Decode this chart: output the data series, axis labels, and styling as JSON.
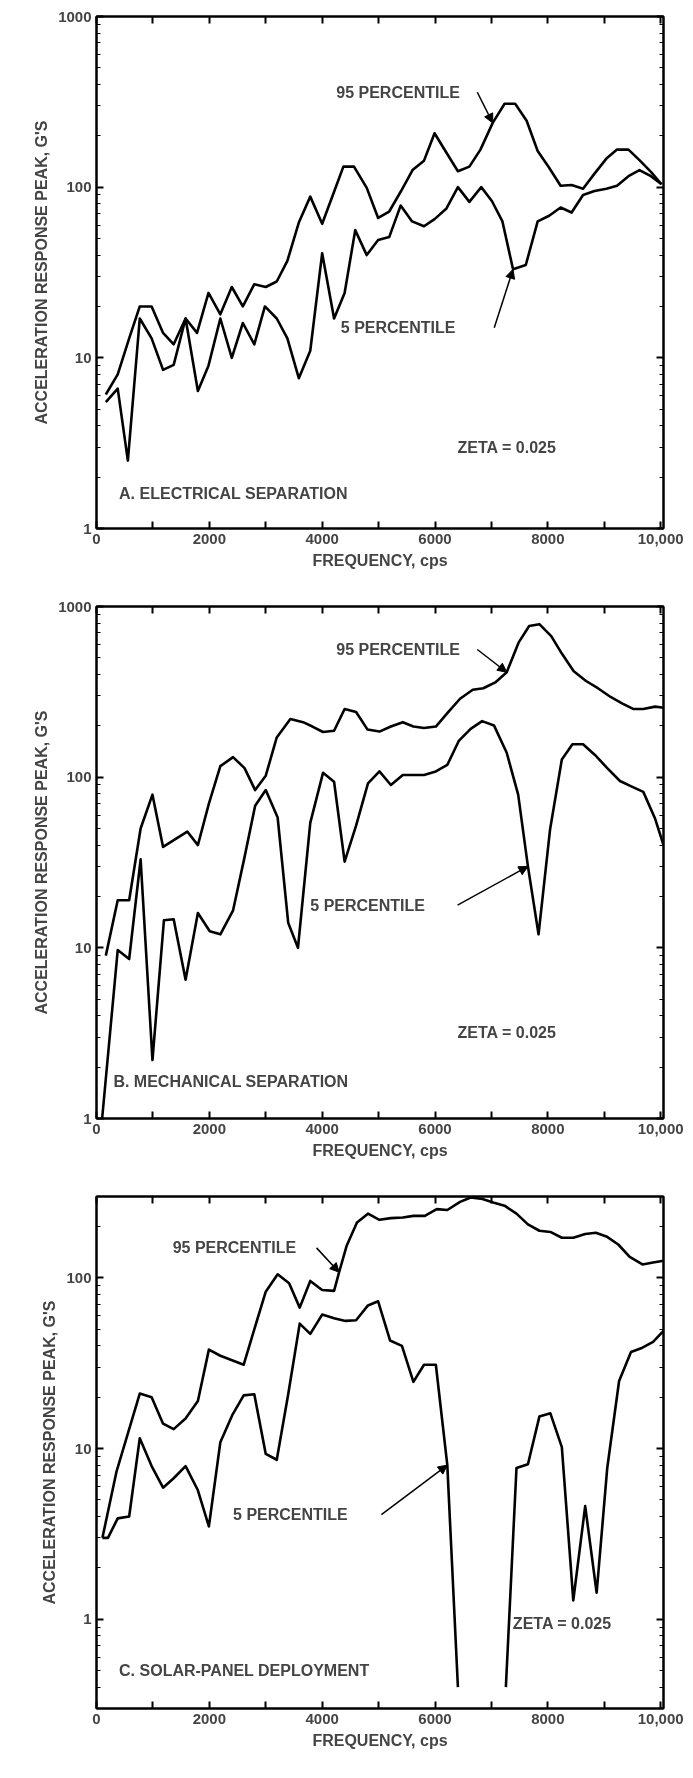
{
  "chart_data": [
    {
      "type": "line",
      "title": "A. ELECTRICAL SEPARATION",
      "xlabel": "FREQUENCY, cps",
      "ylabel": "ACCELERATION RESPONSE PEAK, G'S",
      "annotations": [
        "ZETA = 0.025"
      ],
      "log": "y",
      "xlim": [
        0,
        10050
      ],
      "ylim": [
        1,
        1000
      ],
      "xticks": [
        0,
        {
          "value": 1000,
          "label": null
        },
        2000,
        {
          "value": 3000,
          "label": null
        },
        4000,
        {
          "value": 5000,
          "label": null
        },
        6000,
        {
          "value": 7000,
          "label": null
        },
        8000,
        {
          "value": 9000,
          "label": null
        },
        {
          "value": 10000,
          "label": "10,000"
        }
      ],
      "yticks": [
        1,
        {
          "value": 2,
          "label": null
        },
        {
          "value": 3,
          "label": null
        },
        {
          "value": 4,
          "label": null
        },
        {
          "value": 5,
          "label": null
        },
        {
          "value": 6,
          "label": null
        },
        {
          "value": 7,
          "label": null
        },
        {
          "value": 8,
          "label": null
        },
        {
          "value": 9,
          "label": null
        },
        10,
        {
          "value": 20,
          "label": null
        },
        {
          "value": 30,
          "label": null
        },
        {
          "value": 40,
          "label": null
        },
        {
          "value": 50,
          "label": null
        },
        {
          "value": 60,
          "label": null
        },
        {
          "value": 70,
          "label": null
        },
        {
          "value": 80,
          "label": null
        },
        {
          "value": 90,
          "label": null
        },
        100,
        {
          "value": 200,
          "label": null
        },
        {
          "value": 300,
          "label": null
        },
        {
          "value": 400,
          "label": null
        },
        {
          "value": 500,
          "label": null
        },
        {
          "value": 600,
          "label": null
        },
        {
          "value": 700,
          "label": null
        },
        {
          "value": 800,
          "label": null
        },
        {
          "value": 900,
          "label": null
        },
        1000
      ],
      "series": [
        {
          "name": "95 PERCENTILE",
          "color": "#000000",
          "x": [
            165,
            376,
            579,
            767,
            977,
            1180,
            1368,
            1579,
            1782,
            1985,
            2195,
            2398,
            2594,
            2797,
            3000,
            3195,
            3383,
            3586,
            3789,
            4000,
            4211,
            4376,
            4564,
            4790,
            4992,
            5188,
            5391,
            5602,
            5805,
            5992,
            6203,
            6406,
            6609,
            6805,
            7023,
            7233,
            7421,
            7624,
            7820,
            8023,
            8226,
            8421,
            8624,
            8827,
            9038,
            9226,
            9429,
            9624,
            9827,
            10015
          ],
          "values": [
            6.1,
            8,
            13,
            20,
            20,
            14,
            12,
            17,
            14,
            24,
            18,
            26,
            20,
            27,
            26,
            28,
            37,
            62,
            88,
            61,
            94,
            132,
            132,
            99,
            66,
            72,
            94,
            126,
            143,
            207,
            159,
            124,
            132,
            166,
            238,
            308,
            308,
            245,
            163,
            130,
            102,
            103,
            98,
            120,
            147,
            166,
            166,
            144,
            123,
            104
          ]
        },
        {
          "name": "5 PERCENTILE",
          "color": "#000000",
          "x": [
            165,
            376,
            556,
            767,
            977,
            1180,
            1368,
            1579,
            1797,
            1985,
            2195,
            2398,
            2594,
            2797,
            2985,
            3195,
            3383,
            3586,
            3789,
            4000,
            4211,
            4398,
            4586,
            4790,
            4992,
            5188,
            5391,
            5594,
            5805,
            5992,
            6203,
            6406,
            6609,
            6820,
            7008,
            7195,
            7383,
            7609,
            7820,
            8023,
            8226,
            8421,
            8624,
            8827,
            9038,
            9226,
            9429,
            9624,
            9827,
            10015
          ],
          "values": [
            5.5,
            6.6,
            2.5,
            17,
            13,
            8.5,
            9.1,
            17,
            6.4,
            9,
            17,
            10,
            16,
            12,
            20,
            17,
            13,
            7.6,
            11,
            41,
            17,
            24,
            56,
            40,
            49,
            51,
            78,
            63,
            59,
            65,
            75,
            100,
            82,
            100,
            83,
            63,
            33,
            35,
            63,
            68,
            76,
            71,
            90,
            95,
            98,
            102,
            116,
            126,
            116,
            104
          ]
        }
      ]
    },
    {
      "type": "line",
      "title": "B. MECHANICAL SEPARATION",
      "xlabel": "FREQUENCY, cps",
      "ylabel": "ACCELERATION RESPONSE PEAK, G'S",
      "annotations": [
        "ZETA = 0.025"
      ],
      "log": "y",
      "xlim": [
        0,
        10050
      ],
      "ylim": [
        1,
        1000
      ],
      "xticks": [
        0,
        {
          "value": 1000,
          "label": null
        },
        2000,
        {
          "value": 3000,
          "label": null
        },
        4000,
        {
          "value": 5000,
          "label": null
        },
        6000,
        {
          "value": 7000,
          "label": null
        },
        8000,
        {
          "value": 9000,
          "label": null
        },
        {
          "value": 10000,
          "label": "10,000"
        }
      ],
      "yticks": [
        1,
        {
          "value": 2,
          "label": null
        },
        {
          "value": 3,
          "label": null
        },
        {
          "value": 4,
          "label": null
        },
        {
          "value": 5,
          "label": null
        },
        {
          "value": 6,
          "label": null
        },
        {
          "value": 7,
          "label": null
        },
        {
          "value": 8,
          "label": null
        },
        {
          "value": 9,
          "label": null
        },
        10,
        {
          "value": 20,
          "label": null
        },
        {
          "value": 30,
          "label": null
        },
        {
          "value": 40,
          "label": null
        },
        {
          "value": 50,
          "label": null
        },
        {
          "value": 60,
          "label": null
        },
        {
          "value": 70,
          "label": null
        },
        {
          "value": 80,
          "label": null
        },
        {
          "value": 90,
          "label": null
        },
        100,
        {
          "value": 200,
          "label": null
        },
        {
          "value": 300,
          "label": null
        },
        {
          "value": 400,
          "label": null
        },
        {
          "value": 500,
          "label": null
        },
        {
          "value": 600,
          "label": null
        },
        {
          "value": 700,
          "label": null
        },
        {
          "value": 800,
          "label": null
        },
        {
          "value": 900,
          "label": null
        },
        1000
      ],
      "series": [
        {
          "name": "95 PERCENTILE",
          "color": "#000000",
          "x": [
            165,
            376,
            579,
            782,
            992,
            1180,
            1609,
            1797,
            1992,
            2195,
            2421,
            2624,
            2812,
            3000,
            3195,
            3436,
            3662,
            3827,
            4015,
            4211,
            4398,
            4601,
            4805,
            5015,
            5218,
            5429,
            5617,
            5805,
            6015,
            6218,
            6444,
            6669,
            6857,
            7068,
            7271,
            7481,
            7669,
            7850,
            8060,
            8248,
            8459,
            8677,
            8887,
            9113,
            9323,
            9511,
            9692,
            9902,
            10050
          ],
          "values": [
            9,
            19,
            19,
            50,
            79,
            39,
            48,
            40,
            70,
            116,
            131,
            113,
            84,
            102,
            171,
            219,
            210,
            198,
            184,
            187,
            251,
            241,
            190,
            185,
            198,
            210,
            198,
            194,
            198,
            237,
            288,
            325,
            332,
            359,
            412,
            614,
            769,
            788,
            671,
            530,
            417,
            366,
            332,
            295,
            270,
            251,
            251,
            259,
            255
          ]
        },
        {
          "name": "5 PERCENTILE",
          "color": "#000000",
          "x": [
            100,
            376,
            579,
            782,
            992,
            1195,
            1368,
            1579,
            1797,
            2008,
            2195,
            2421,
            2624,
            2812,
            3000,
            3211,
            3398,
            3571,
            3789,
            4015,
            4211,
            4398,
            4601,
            4812,
            5015,
            5218,
            5429,
            5617,
            5805,
            6015,
            6218,
            6421,
            6632,
            6835,
            7045,
            7271,
            7474,
            7647,
            7835,
            8038,
            8248,
            8436,
            8624,
            8835,
            9053,
            9278,
            9489,
            9692,
            9902,
            10050
          ],
          "values": [
            1,
            9.7,
            8.6,
            33,
            2.2,
            14.5,
            14.7,
            6.5,
            16,
            12.5,
            12,
            16.6,
            34,
            68,
            84,
            58,
            14,
            10,
            54,
            106,
            94,
            32,
            52,
            92,
            108,
            90,
            103,
            103,
            103,
            108,
            118,
            163,
            192,
            213,
            201,
            139,
            79,
            30,
            12,
            49,
            127,
            156,
            156,
            135,
            113,
            95,
            88,
            82,
            57,
            40
          ]
        }
      ]
    },
    {
      "type": "line",
      "title": "C. SOLAR-PANEL DEPLOYMENT",
      "xlabel": "FREQUENCY, cps",
      "ylabel": "ACCELERATION RESPONSE PEAK, G'S",
      "annotations": [
        "ZETA = 0.025"
      ],
      "log": "y",
      "xlim": [
        0,
        10050
      ],
      "ylim": [
        0.3,
        300
      ],
      "xticks": [
        0,
        {
          "value": 1000,
          "label": null
        },
        2000,
        {
          "value": 3000,
          "label": null
        },
        4000,
        {
          "value": 5000,
          "label": null
        },
        6000,
        {
          "value": 7000,
          "label": null
        },
        8000,
        {
          "value": 9000,
          "label": null
        },
        {
          "value": 10000,
          "label": "10,000"
        }
      ],
      "yticks": [
        {
          "value": 0.4,
          "label": null
        },
        {
          "value": 0.5,
          "label": null
        },
        {
          "value": 0.6,
          "label": null
        },
        {
          "value": 0.7,
          "label": null
        },
        {
          "value": 0.8,
          "label": null
        },
        {
          "value": 0.9,
          "label": null
        },
        1,
        {
          "value": 2,
          "label": null
        },
        {
          "value": 3,
          "label": null
        },
        {
          "value": 4,
          "label": null
        },
        {
          "value": 5,
          "label": null
        },
        {
          "value": 6,
          "label": null
        },
        {
          "value": 7,
          "label": null
        },
        {
          "value": 8,
          "label": null
        },
        {
          "value": 9,
          "label": null
        },
        10,
        {
          "value": 20,
          "label": null
        },
        {
          "value": 30,
          "label": null
        },
        {
          "value": 40,
          "label": null
        },
        {
          "value": 50,
          "label": null
        },
        {
          "value": 60,
          "label": null
        },
        {
          "value": 70,
          "label": null
        },
        {
          "value": 80,
          "label": null
        },
        {
          "value": 90,
          "label": null
        },
        100,
        {
          "value": 200,
          "label": null
        }
      ],
      "series": [
        {
          "name": "95 PERCENTILE",
          "color": "#000000",
          "x": [
            105,
            353,
            579,
            767,
            977,
            1180,
            1368,
            1579,
            1797,
            1992,
            2195,
            2609,
            2797,
            3000,
            3211,
            3414,
            3602,
            3789,
            4000,
            4211,
            4300,
            4436,
            4617,
            4812,
            5015,
            5218,
            5429,
            5617,
            5820,
            6030,
            6218,
            6444,
            6632,
            6842,
            7045,
            7233,
            7444,
            7647,
            7850,
            8045,
            8248,
            8451,
            8662,
            8850,
            9038,
            9248,
            9451,
            9677,
            9865,
            10050
          ],
          "values": [
            3,
            7.3,
            13,
            21,
            20,
            14,
            13,
            15,
            19,
            38,
            35,
            31,
            50,
            83,
            105,
            93,
            67,
            96,
            85,
            84,
            108,
            155,
            211,
            238,
            219,
            224,
            226,
            231,
            231,
            253,
            250,
            279,
            296,
            290,
            276,
            265,
            238,
            206,
            189,
            186,
            172,
            172,
            181,
            184,
            175,
            157,
            133,
            120,
            123,
            126
          ]
        },
        {
          "name": "5 PERCENTILE",
          "color": "#000000",
          "x": [
            105,
            203,
            376,
            579,
            767,
            977,
            1180,
            1368,
            1579,
            1797,
            1992,
            2195,
            2406,
            2609,
            2797,
            3000,
            3195,
            3398,
            3602,
            3789,
            4000,
            4211,
            4414,
            4601,
            4812,
            4992,
            5203,
            5414,
            5617,
            5805,
            6015,
            6218,
            6406,
            6800,
            7256,
            7444,
            7647,
            7850,
            8045,
            8248,
            8451,
            8662,
            8865,
            9053,
            9263,
            9474,
            9677,
            9865,
            10050
          ],
          "values": [
            3,
            3,
            3.9,
            4,
            11.5,
            7.9,
            5.9,
            6.7,
            7.9,
            5.7,
            3.5,
            10.9,
            15.7,
            20.5,
            20.8,
            9.3,
            8.6,
            20.8,
            54,
            47,
            61,
            58,
            56,
            56.5,
            69,
            73,
            43,
            40,
            24.6,
            31,
            31,
            8,
            0.4,
            null,
            0.4,
            7.7,
            8.1,
            15.4,
            16.1,
            10.2,
            1.29,
            4.6,
            1.43,
            7.7,
            24.9,
            36.8,
            39,
            42.2,
            49
          ]
        }
      ]
    }
  ]
}
